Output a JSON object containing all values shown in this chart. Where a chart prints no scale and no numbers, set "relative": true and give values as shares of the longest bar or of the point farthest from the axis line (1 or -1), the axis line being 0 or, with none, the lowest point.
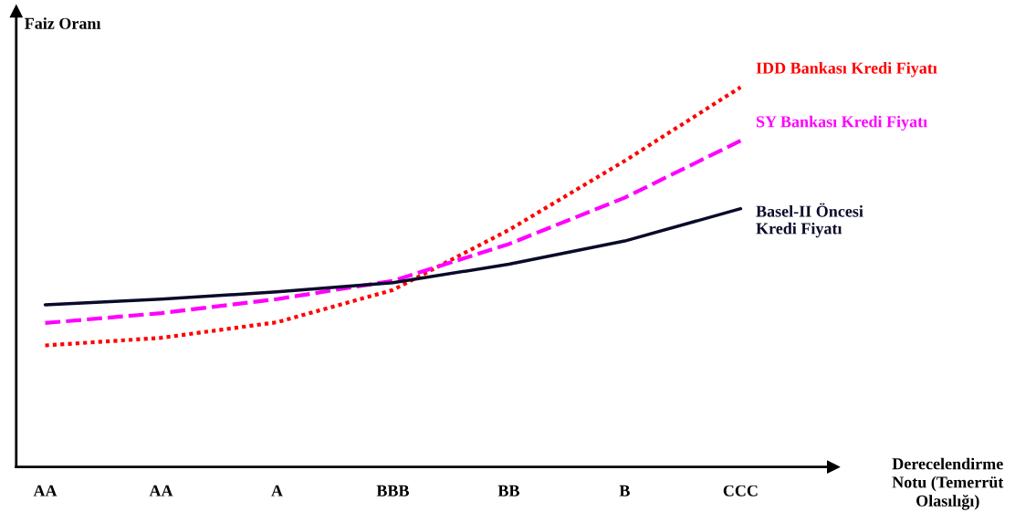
{
  "chart_data": {
    "type": "line",
    "relative": true,
    "xlabel": "Derecelendirme\nNotu (Temerrüt\nOlasılığı)",
    "ylabel": "Faiz Oranı",
    "categories": [
      "AA",
      "AA",
      "A",
      "BBB",
      "BB",
      "B",
      "CCC"
    ],
    "series": [
      {
        "name": "IDD Bankası Kredi Fiyatı",
        "color": "#ff0000",
        "line_style": "dotted",
        "values": [
          0.32,
          0.34,
          0.381,
          0.466,
          0.624,
          0.806,
          1
        ]
      },
      {
        "name": "SY Bankası Kredi Fiyatı",
        "color": "#ff00ff",
        "line_style": "dashed",
        "values": [
          0.379,
          0.405,
          0.442,
          0.49,
          0.587,
          0.709,
          0.859
        ]
      },
      {
        "name": "Basel-II Öncesi\nKredi Fiyatı",
        "color": "#0a0a2a",
        "line_style": "solid",
        "values": [
          0.427,
          0.442,
          0.461,
          0.485,
          0.534,
          0.595,
          0.68
        ]
      }
    ],
    "grid": false,
    "legend": false,
    "marker": "none"
  }
}
